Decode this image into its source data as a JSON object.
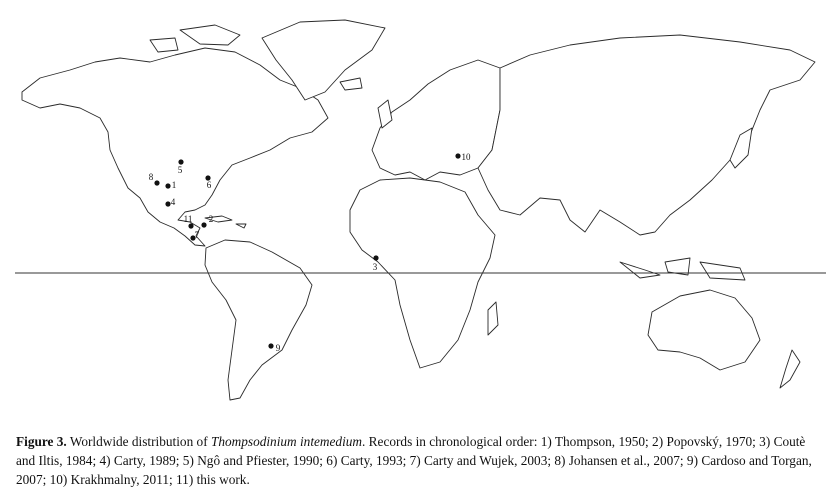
{
  "figure": {
    "markers": [
      "1",
      "2",
      "3",
      "4",
      "5",
      "6",
      "7",
      "8",
      "9",
      "10",
      "11"
    ],
    "caption": {
      "label": "Figure 3.",
      "intro": "Worldwide distribution of",
      "species": "Thompsodinium intemedium",
      "records": ". Records in chronological order: 1) Thompson, 1950; 2) Popovský, 1970; 3) Coutè and Iltis, 1984; 4) Carty, 1989; 5) Ngô and Pfiester, 1990; 6) Carty, 1993; 7) Carty and Wujek, 2003; 8) Johansen et al., 2007; 9) Cardoso and Torgan, 2007; 10) Krakhmalny, 2011; 11) this work."
    }
  }
}
